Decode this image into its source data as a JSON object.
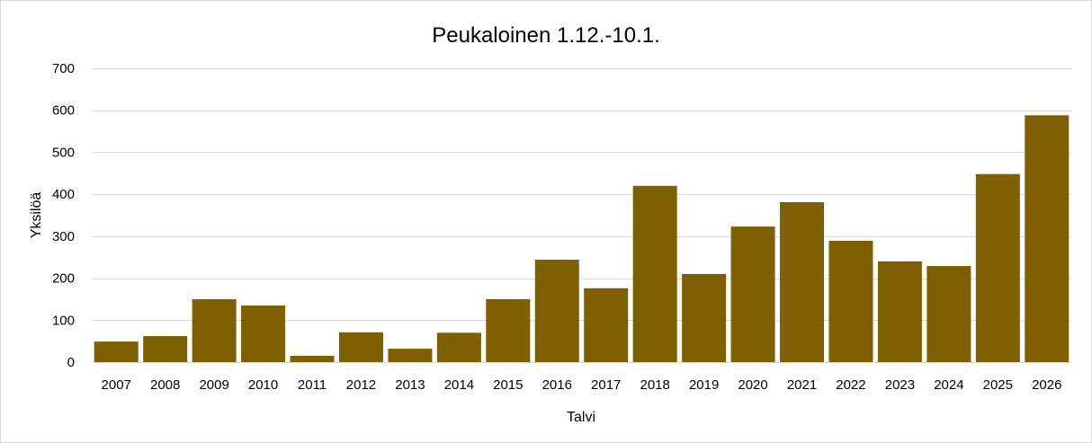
{
  "chart_data": {
    "type": "bar",
    "title": "Peukaloinen 1.12.-10.1.",
    "xlabel": "Talvi",
    "ylabel": "Yksilöä",
    "categories": [
      "2007",
      "2008",
      "2009",
      "2010",
      "2011",
      "2012",
      "2013",
      "2014",
      "2015",
      "2016",
      "2017",
      "2018",
      "2019",
      "2020",
      "2021",
      "2022",
      "2023",
      "2024",
      "2025",
      "2026"
    ],
    "series": [
      {
        "values": [
          49,
          62,
          150,
          135,
          15,
          71,
          32,
          70,
          150,
          244,
          176,
          420,
          210,
          323,
          381,
          289,
          240,
          229,
          448,
          588
        ]
      }
    ],
    "ylim": [
      0,
      700
    ],
    "yticks": [
      0,
      100,
      200,
      300,
      400,
      500,
      600,
      700
    ],
    "grid": true,
    "legend": "none",
    "bar_color": "#7f6000"
  }
}
